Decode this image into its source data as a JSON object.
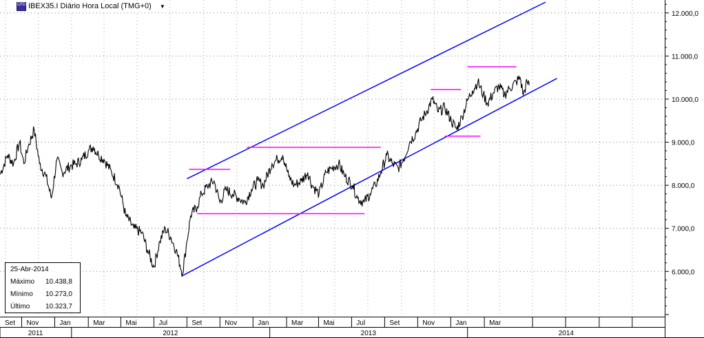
{
  "header": {
    "title": "IBEX35.I Diário Hora Local (TMG+0)",
    "icon_text": "CFD"
  },
  "info": {
    "date": "25-Abr-2014",
    "rows": [
      {
        "label": "Máximo",
        "value": "10.438,8"
      },
      {
        "label": "Mínimo",
        "value": "10.273,0"
      },
      {
        "label": "Último",
        "value": "10.323,7"
      }
    ]
  },
  "colors": {
    "price": "#000000",
    "channel": "#0000ff",
    "levels": "#ff00ff",
    "grid": "#000000"
  },
  "chart_data": {
    "type": "line",
    "title": "IBEX35.I Diário Hora Local (TMG+0)",
    "yticks": [
      "12.000,0",
      "11.000,0",
      "10.000,0",
      "9.000,0",
      "8.000,0",
      "7.000,0",
      "6.000,0"
    ],
    "ytick_values": [
      12000,
      11000,
      10000,
      9000,
      8000,
      7000,
      6000
    ],
    "ylim": [
      4950,
      12300
    ],
    "xlim": [
      "2011-08-22",
      "2014-12-31"
    ],
    "month_ticks": [
      {
        "label": "Set",
        "date": "2011-09-01"
      },
      {
        "label": "Nov",
        "date": "2011-11-01"
      },
      {
        "label": "Jan",
        "date": "2012-01-01"
      },
      {
        "label": "Mar",
        "date": "2012-03-01"
      },
      {
        "label": "Mai",
        "date": "2012-05-01"
      },
      {
        "label": "Jul",
        "date": "2012-07-01"
      },
      {
        "label": "Set",
        "date": "2012-09-01"
      },
      {
        "label": "Nov",
        "date": "2012-11-01"
      },
      {
        "label": "Jan",
        "date": "2013-01-01"
      },
      {
        "label": "Mar",
        "date": "2013-03-01"
      },
      {
        "label": "Mai",
        "date": "2013-05-01"
      },
      {
        "label": "Jul",
        "date": "2013-07-01"
      },
      {
        "label": "Set",
        "date": "2013-09-01"
      },
      {
        "label": "Nov",
        "date": "2013-11-01"
      },
      {
        "label": "Jan",
        "date": "2014-01-01"
      },
      {
        "label": "Mar",
        "date": "2014-03-01"
      }
    ],
    "year_ticks": [
      {
        "label": "2011",
        "start": "2011-08-22",
        "end": "2011-12-31"
      },
      {
        "label": "2012",
        "start": "2012-01-01",
        "end": "2012-12-31"
      },
      {
        "label": "2013",
        "start": "2013-01-01",
        "end": "2013-12-31"
      },
      {
        "label": "2014",
        "start": "2014-01-01",
        "end": "2014-12-31"
      }
    ],
    "series": [
      {
        "values": [
          [
            "2011-08-22",
            8250
          ],
          [
            "2011-09-05",
            8700
          ],
          [
            "2011-09-16",
            8500
          ],
          [
            "2011-09-27",
            9000
          ],
          [
            "2011-10-05",
            8500
          ],
          [
            "2011-10-13",
            8900
          ],
          [
            "2011-10-24",
            9300
          ],
          [
            "2011-11-03",
            8500
          ],
          [
            "2011-11-15",
            8200
          ],
          [
            "2011-11-25",
            7700
          ],
          [
            "2011-12-05",
            8600
          ],
          [
            "2011-12-15",
            8300
          ],
          [
            "2011-12-30",
            8450
          ],
          [
            "2012-01-10",
            8500
          ],
          [
            "2012-01-20",
            8600
          ],
          [
            "2012-02-01",
            8800
          ],
          [
            "2012-02-10",
            8900
          ],
          [
            "2012-02-20",
            8700
          ],
          [
            "2012-03-01",
            8600
          ],
          [
            "2012-03-15",
            8300
          ],
          [
            "2012-03-28",
            8000
          ],
          [
            "2012-04-10",
            7300
          ],
          [
            "2012-04-25",
            7000
          ],
          [
            "2012-05-10",
            6900
          ],
          [
            "2012-05-20",
            6500
          ],
          [
            "2012-06-01",
            6100
          ],
          [
            "2012-06-12",
            6700
          ],
          [
            "2012-06-22",
            7000
          ],
          [
            "2012-07-02",
            6800
          ],
          [
            "2012-07-12",
            6500
          ],
          [
            "2012-07-24",
            5950
          ],
          [
            "2012-08-01",
            6700
          ],
          [
            "2012-08-08",
            7300
          ],
          [
            "2012-08-20",
            7500
          ],
          [
            "2012-08-28",
            7800
          ],
          [
            "2012-09-10",
            8000
          ],
          [
            "2012-09-20",
            8100
          ],
          [
            "2012-10-01",
            7600
          ],
          [
            "2012-10-12",
            7900
          ],
          [
            "2012-10-24",
            7800
          ],
          [
            "2012-11-05",
            7700
          ],
          [
            "2012-11-16",
            7600
          ],
          [
            "2012-11-28",
            7900
          ],
          [
            "2012-12-10",
            8100
          ],
          [
            "2012-12-20",
            8000
          ],
          [
            "2013-01-05",
            8500
          ],
          [
            "2013-01-15",
            8600
          ],
          [
            "2013-01-25",
            8700
          ],
          [
            "2013-02-05",
            8200
          ],
          [
            "2013-02-15",
            8000
          ],
          [
            "2013-02-28",
            8100
          ],
          [
            "2013-03-12",
            8300
          ],
          [
            "2013-03-20",
            8000
          ],
          [
            "2013-04-02",
            7800
          ],
          [
            "2013-04-15",
            8300
          ],
          [
            "2013-04-25",
            8400
          ],
          [
            "2013-05-08",
            8500
          ],
          [
            "2013-05-20",
            8200
          ],
          [
            "2013-06-03",
            8000
          ],
          [
            "2013-06-12",
            7700
          ],
          [
            "2013-06-24",
            7600
          ],
          [
            "2013-07-05",
            7800
          ],
          [
            "2013-07-15",
            8000
          ],
          [
            "2013-07-25",
            8300
          ],
          [
            "2013-08-05",
            8700
          ],
          [
            "2013-08-15",
            8500
          ],
          [
            "2013-08-26",
            8400
          ],
          [
            "2013-09-05",
            8600
          ],
          [
            "2013-09-16",
            9000
          ],
          [
            "2013-09-27",
            9200
          ],
          [
            "2013-10-07",
            9500
          ],
          [
            "2013-10-17",
            9700
          ],
          [
            "2013-10-28",
            10000
          ],
          [
            "2013-11-08",
            9700
          ],
          [
            "2013-11-20",
            9800
          ],
          [
            "2013-12-02",
            9500
          ],
          [
            "2013-12-12",
            9300
          ],
          [
            "2013-12-22",
            9600
          ],
          [
            "2014-01-02",
            10000
          ],
          [
            "2014-01-10",
            10200
          ],
          [
            "2014-01-20",
            10400
          ],
          [
            "2014-01-30",
            10100
          ],
          [
            "2014-02-07",
            9900
          ],
          [
            "2014-02-18",
            10150
          ],
          [
            "2014-02-28",
            10300
          ],
          [
            "2014-03-10",
            10100
          ],
          [
            "2014-03-20",
            10250
          ],
          [
            "2014-04-01",
            10400
          ],
          [
            "2014-04-08",
            10500
          ],
          [
            "2014-04-14",
            10100
          ],
          [
            "2014-04-21",
            10400
          ],
          [
            "2014-04-25",
            10323
          ]
        ]
      }
    ],
    "annotations": {
      "channel_lines": [
        {
          "from": [
            "2012-08-01",
            8150
          ],
          "to": [
            "2014-05-25",
            12250
          ]
        },
        {
          "from": [
            "2012-07-22",
            5890
          ],
          "to": [
            "2014-06-15",
            10480
          ]
        }
      ],
      "level_lines": [
        {
          "from": [
            "2012-08-05",
            8370
          ],
          "to": [
            "2012-10-20",
            8370
          ]
        },
        {
          "from": [
            "2012-08-20",
            7340
          ],
          "to": [
            "2013-06-25",
            7340
          ]
        },
        {
          "from": [
            "2012-11-20",
            8880
          ],
          "to": [
            "2013-07-25",
            8880
          ]
        },
        {
          "from": [
            "2013-10-25",
            10220
          ],
          "to": [
            "2013-12-20",
            10220
          ]
        },
        {
          "from": [
            "2013-11-20",
            9140
          ],
          "to": [
            "2014-01-25",
            9140
          ]
        },
        {
          "from": [
            "2014-01-01",
            10750
          ],
          "to": [
            "2014-04-01",
            10750
          ]
        }
      ]
    }
  }
}
